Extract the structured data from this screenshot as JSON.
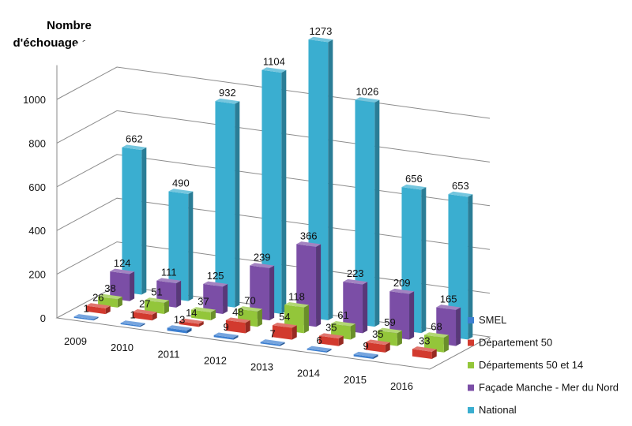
{
  "chart_data": {
    "type": "bar",
    "title_lines": [
      "Nombre",
      "d'échouage cétacés"
    ],
    "categories": [
      "2009",
      "2010",
      "2011",
      "2012",
      "2013",
      "2014",
      "2015",
      "2016"
    ],
    "series": [
      {
        "name": "SMEL",
        "color": "#3c7fd0",
        "values": [
          1,
          1,
          13,
          9,
          7,
          6,
          9,
          null
        ],
        "labels": [
          "1",
          "1",
          "13",
          "9",
          "7",
          "6",
          "9",
          ""
        ]
      },
      {
        "name": "Département 50",
        "color": "#d23a2e",
        "values": [
          26,
          27,
          14,
          48,
          54,
          35,
          35,
          33
        ],
        "labels": [
          "26",
          "27",
          "14",
          "48",
          "54",
          "35",
          "35",
          "33"
        ]
      },
      {
        "name": "Départements 50 et 14",
        "color": "#93c63a",
        "values": [
          38,
          51,
          37,
          70,
          118,
          61,
          59,
          68
        ],
        "labels": [
          "38",
          "51",
          "37",
          "70",
          "118",
          "61",
          "59",
          "68"
        ]
      },
      {
        "name": "Façade Manche - Mer du Nord",
        "color": "#7b4ea6",
        "values": [
          124,
          111,
          125,
          239,
          366,
          223,
          209,
          165
        ],
        "labels": [
          "124",
          "111",
          "125",
          "239",
          "366",
          "223",
          "209",
          "165"
        ]
      },
      {
        "name": "National",
        "color": "#3aaed0",
        "values": [
          662,
          490,
          932,
          1104,
          1273,
          1026,
          656,
          653
        ],
        "labels": [
          "662",
          "490",
          "932",
          "1104",
          "1273",
          "1026",
          "656",
          "653"
        ]
      }
    ],
    "y_ticks": [
      "0",
      "200",
      "400",
      "600",
      "800",
      "1000"
    ],
    "ylim": [
      0,
      1200
    ],
    "grid": true,
    "legend_position": "right"
  }
}
